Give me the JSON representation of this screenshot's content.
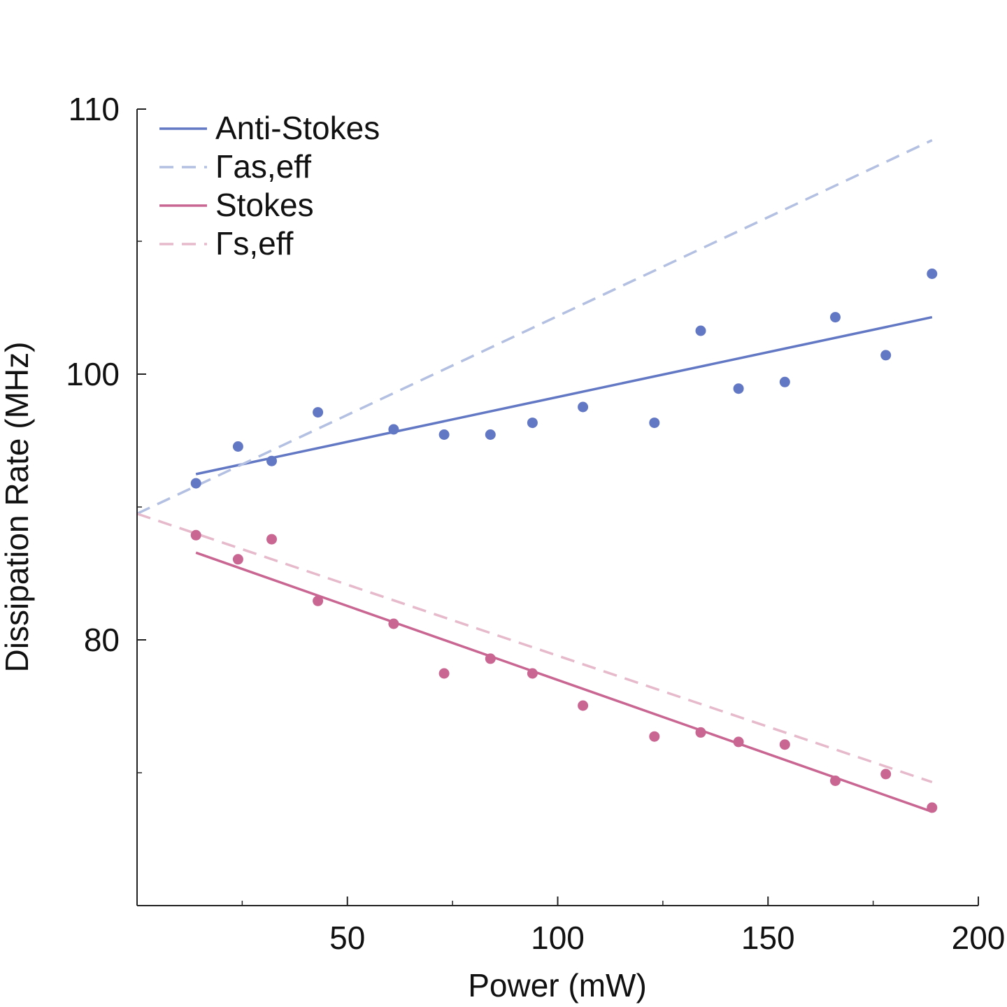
{
  "chart_data": {
    "type": "scatter",
    "title": "",
    "xlabel": "Power (mW)",
    "ylabel": "Dissipation Rate (MHz)",
    "xlim": [
      0,
      200
    ],
    "x_ticks": [
      {
        "value": 50,
        "label": "50"
      },
      {
        "value": 100,
        "label": "100"
      },
      {
        "value": 150,
        "label": "150"
      },
      {
        "value": 200,
        "label": "200"
      }
    ],
    "x_minor_ticks": [
      25,
      75,
      125,
      175
    ],
    "y_major_ticks": [
      {
        "value": 80,
        "label": "80"
      },
      {
        "value": 100,
        "label": "100"
      },
      {
        "value": 110,
        "label": "110"
      }
    ],
    "y_minor_ticks": [
      70.1,
      89.9,
      104.9
    ],
    "grid": false,
    "legend_position": "top-left",
    "legend": [
      {
        "label": "Anti-Stokes",
        "color": "#6378c4",
        "dash": false
      },
      {
        "label": "Γas,eff",
        "color": "#b4c0e2",
        "dash": true
      },
      {
        "label": "Stokes",
        "color": "#c96692",
        "dash": false
      },
      {
        "label": "Γs,eff",
        "color": "#e6b9cb",
        "dash": true
      }
    ],
    "colors": {
      "anti_stokes": "#6378c4",
      "anti_stokes_eff": "#b4c0e2",
      "stokes": "#c96692",
      "stokes_eff": "#e6b9cb",
      "axis": "#222222"
    },
    "series": [
      {
        "name": "Anti-Stokes",
        "kind": "points",
        "color": "#6378c4",
        "points": [
          [
            14,
            91.7
          ],
          [
            24,
            94.5
          ],
          [
            32,
            93.4
          ],
          [
            43,
            97.1
          ],
          [
            61,
            95.8
          ],
          [
            73,
            95.4
          ],
          [
            84,
            95.4
          ],
          [
            94,
            96.3
          ],
          [
            106,
            97.5
          ],
          [
            123,
            96.3
          ],
          [
            134,
            101.6
          ],
          [
            143,
            98.9
          ],
          [
            154,
            99.4
          ],
          [
            166,
            102.1
          ],
          [
            178,
            100.7
          ],
          [
            189,
            103.7
          ]
        ]
      },
      {
        "name": "Anti-Stokes",
        "kind": "line",
        "color": "#6378c4",
        "dash": false,
        "points": [
          [
            14,
            92.4
          ],
          [
            189,
            102.1
          ]
        ]
      },
      {
        "name": "Γas,eff",
        "kind": "line",
        "color": "#b4c0e2",
        "dash": true,
        "points": [
          [
            0,
            89.4
          ],
          [
            189,
            108.8
          ]
        ]
      },
      {
        "name": "Stokes",
        "kind": "points",
        "color": "#c96692",
        "points": [
          [
            14,
            87.8
          ],
          [
            24,
            86.0
          ],
          [
            32,
            87.5
          ],
          [
            43,
            82.9
          ],
          [
            61,
            81.2
          ],
          [
            73,
            77.5
          ],
          [
            84,
            78.6
          ],
          [
            94,
            77.5
          ],
          [
            106,
            75.1
          ],
          [
            123,
            72.8
          ],
          [
            134,
            73.1
          ],
          [
            143,
            72.4
          ],
          [
            154,
            72.2
          ],
          [
            166,
            69.5
          ],
          [
            178,
            70.0
          ],
          [
            189,
            67.5
          ]
        ]
      },
      {
        "name": "Stokes",
        "kind": "line",
        "color": "#c96692",
        "dash": false,
        "points": [
          [
            14,
            86.5
          ],
          [
            189,
            67.2
          ]
        ]
      },
      {
        "name": "Γs,eff",
        "kind": "line",
        "color": "#e6b9cb",
        "dash": true,
        "points": [
          [
            0,
            89.4
          ],
          [
            189,
            69.4
          ]
        ]
      }
    ]
  }
}
